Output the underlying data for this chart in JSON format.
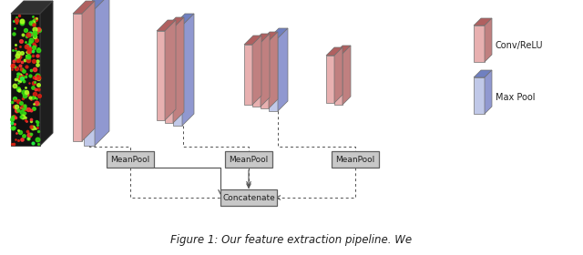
{
  "conv_face": "#e8b0b0",
  "conv_top": "#b06060",
  "conv_side": "#c08080",
  "pool_face": "#c0c8e8",
  "pool_top": "#7080c0",
  "pool_side": "#9098d0",
  "box_face": "#c8c8c8",
  "box_edge": "#606060",
  "line_color": "#505050",
  "legend_conv_label": "Conv/ReLU",
  "legend_maxpool_label": "Max Pool",
  "meanpool_label": "MeanPool",
  "concat_label": "Concatenate",
  "caption": "Figure 1: Our feature extraction pipeline. We"
}
